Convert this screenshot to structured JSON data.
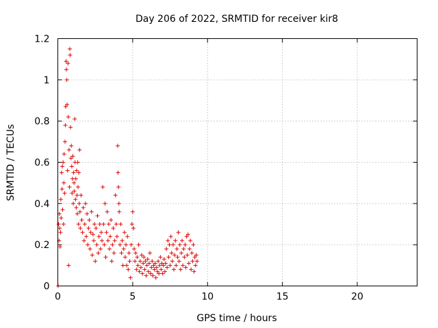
{
  "chart_data": {
    "type": "scatter",
    "title": "Day 206 of 2022, SRMTID for receiver kir8",
    "xlabel": "GPS time / hours",
    "ylabel": "SRMTID / TECUs",
    "xlim": [
      0,
      24
    ],
    "ylim": [
      0,
      1.2
    ],
    "xticks": [
      0,
      5,
      10,
      15,
      20
    ],
    "yticks": [
      0,
      0.2,
      0.4,
      0.6,
      0.8,
      1,
      1.2
    ],
    "xtick_labels": [
      "0",
      "5",
      "10",
      "15",
      "20"
    ],
    "ytick_labels": [
      "0",
      "0.2",
      "0.4",
      "0.6",
      "0.8",
      "1",
      "1.2"
    ],
    "grid": true,
    "marker": "+",
    "color": "#e00000",
    "series": [
      {
        "name": "SRMTID",
        "points": [
          [
            0.02,
            0.0
          ],
          [
            0.05,
            0.3
          ],
          [
            0.08,
            0.22
          ],
          [
            0.1,
            0.35
          ],
          [
            0.12,
            0.28
          ],
          [
            0.15,
            0.19
          ],
          [
            0.18,
            0.26
          ],
          [
            0.2,
            0.42
          ],
          [
            0.22,
            0.33
          ],
          [
            0.25,
            0.55
          ],
          [
            0.28,
            0.47
          ],
          [
            0.3,
            0.58
          ],
          [
            0.32,
            0.37
          ],
          [
            0.35,
            0.6
          ],
          [
            0.38,
            0.3
          ],
          [
            0.4,
            0.5
          ],
          [
            0.42,
            0.64
          ],
          [
            0.45,
            0.45
          ],
          [
            0.48,
            0.7
          ],
          [
            0.5,
            0.78
          ],
          [
            0.52,
            0.87
          ],
          [
            0.55,
            1.09
          ],
          [
            0.57,
            1.05
          ],
          [
            0.6,
            1.0
          ],
          [
            0.62,
            0.88
          ],
          [
            0.65,
            0.56
          ],
          [
            0.68,
            1.08
          ],
          [
            0.7,
            0.82
          ],
          [
            0.72,
            0.1
          ],
          [
            0.75,
            0.66
          ],
          [
            0.78,
            0.48
          ],
          [
            0.8,
            1.15
          ],
          [
            0.82,
            1.12
          ],
          [
            0.85,
            0.77
          ],
          [
            0.88,
            0.62
          ],
          [
            0.9,
            0.68
          ],
          [
            0.93,
            0.58
          ],
          [
            0.95,
            0.45
          ],
          [
            0.98,
            0.52
          ],
          [
            1.0,
            0.63
          ],
          [
            1.03,
            0.4
          ],
          [
            1.05,
            0.55
          ],
          [
            1.08,
            0.5
          ],
          [
            1.1,
            0.46
          ],
          [
            1.13,
            0.81
          ],
          [
            1.15,
            0.6
          ],
          [
            1.18,
            0.42
          ],
          [
            1.2,
            0.52
          ],
          [
            1.23,
            0.38
          ],
          [
            1.25,
            0.56
          ],
          [
            1.28,
            0.44
          ],
          [
            1.3,
            0.35
          ],
          [
            1.33,
            0.6
          ],
          [
            1.35,
            0.48
          ],
          [
            1.38,
            0.3
          ],
          [
            1.4,
            0.55
          ],
          [
            1.43,
            0.4
          ],
          [
            1.45,
            0.66
          ],
          [
            1.48,
            0.36
          ],
          [
            1.5,
            0.28
          ],
          [
            1.55,
            0.44
          ],
          [
            1.6,
            0.32
          ],
          [
            1.65,
            0.26
          ],
          [
            1.7,
            0.38
          ],
          [
            1.75,
            0.22
          ],
          [
            1.8,
            0.3
          ],
          [
            1.85,
            0.4
          ],
          [
            1.9,
            0.24
          ],
          [
            1.95,
            0.35
          ],
          [
            2.0,
            0.2
          ],
          [
            2.05,
            0.28
          ],
          [
            2.1,
            0.32
          ],
          [
            2.15,
            0.18
          ],
          [
            2.2,
            0.26
          ],
          [
            2.25,
            0.36
          ],
          [
            2.3,
            0.15
          ],
          [
            2.35,
            0.25
          ],
          [
            2.4,
            0.22
          ],
          [
            2.45,
            0.3
          ],
          [
            2.5,
            0.12
          ],
          [
            2.55,
            0.28
          ],
          [
            2.6,
            0.2
          ],
          [
            2.65,
            0.34
          ],
          [
            2.7,
            0.16
          ],
          [
            2.75,
            0.24
          ],
          [
            2.8,
            0.3
          ],
          [
            2.85,
            0.18
          ],
          [
            2.9,
            0.26
          ],
          [
            2.95,
            0.22
          ],
          [
            3.0,
            0.48
          ],
          [
            3.05,
            0.3
          ],
          [
            3.1,
            0.2
          ],
          [
            3.15,
            0.4
          ],
          [
            3.2,
            0.14
          ],
          [
            3.25,
            0.26
          ],
          [
            3.3,
            0.36
          ],
          [
            3.35,
            0.22
          ],
          [
            3.4,
            0.3
          ],
          [
            3.45,
            0.18
          ],
          [
            3.5,
            0.24
          ],
          [
            3.55,
            0.32
          ],
          [
            3.6,
            0.12
          ],
          [
            3.65,
            0.2
          ],
          [
            3.7,
            0.28
          ],
          [
            3.75,
            0.16
          ],
          [
            3.8,
            0.22
          ],
          [
            3.85,
            0.44
          ],
          [
            3.9,
            0.3
          ],
          [
            3.95,
            0.24
          ],
          [
            4.0,
            0.68
          ],
          [
            4.02,
            0.55
          ],
          [
            4.05,
            0.48
          ],
          [
            4.08,
            0.4
          ],
          [
            4.1,
            0.36
          ],
          [
            4.15,
            0.2
          ],
          [
            4.2,
            0.3
          ],
          [
            4.25,
            0.16
          ],
          [
            4.3,
            0.22
          ],
          [
            4.35,
            0.1
          ],
          [
            4.4,
            0.18
          ],
          [
            4.45,
            0.26
          ],
          [
            4.5,
            0.14
          ],
          [
            4.55,
            0.2
          ],
          [
            4.6,
            0.1
          ],
          [
            4.65,
            0.24
          ],
          [
            4.7,
            0.08
          ],
          [
            4.75,
            0.16
          ],
          [
            4.8,
            0.12
          ],
          [
            4.85,
            0.04
          ],
          [
            4.9,
            0.2
          ],
          [
            4.95,
            0.3
          ],
          [
            5.0,
            0.36
          ],
          [
            5.05,
            0.28
          ],
          [
            5.1,
            0.18
          ],
          [
            5.15,
            0.12
          ],
          [
            5.2,
            0.16
          ],
          [
            5.25,
            0.08
          ],
          [
            5.3,
            0.14
          ],
          [
            5.35,
            0.1
          ],
          [
            5.4,
            0.2
          ],
          [
            5.45,
            0.07
          ],
          [
            5.5,
            0.12
          ],
          [
            5.55,
            0.09
          ],
          [
            5.6,
            0.15
          ],
          [
            5.65,
            0.06
          ],
          [
            5.7,
            0.11
          ],
          [
            5.75,
            0.14
          ],
          [
            5.8,
            0.08
          ],
          [
            5.85,
            0.12
          ],
          [
            5.9,
            0.05
          ],
          [
            5.95,
            0.1
          ],
          [
            6.0,
            0.13
          ],
          [
            6.05,
            0.07
          ],
          [
            6.1,
            0.11
          ],
          [
            6.15,
            0.16
          ],
          [
            6.2,
            0.06
          ],
          [
            6.25,
            0.09
          ],
          [
            6.3,
            0.12
          ],
          [
            6.35,
            0.05
          ],
          [
            6.4,
            0.1
          ],
          [
            6.45,
            0.08
          ],
          [
            6.5,
            0.11
          ],
          [
            6.55,
            0.04
          ],
          [
            6.6,
            0.09
          ],
          [
            6.65,
            0.07
          ],
          [
            6.7,
            0.12
          ],
          [
            6.75,
            0.06
          ],
          [
            6.8,
            0.1
          ],
          [
            6.85,
            0.14
          ],
          [
            6.9,
            0.08
          ],
          [
            6.95,
            0.11
          ],
          [
            7.0,
            0.06
          ],
          [
            7.05,
            0.1
          ],
          [
            7.1,
            0.13
          ],
          [
            7.15,
            0.07
          ],
          [
            7.2,
            0.11
          ],
          [
            7.25,
            0.18
          ],
          [
            7.3,
            0.09
          ],
          [
            7.35,
            0.22
          ],
          [
            7.4,
            0.14
          ],
          [
            7.45,
            0.2
          ],
          [
            7.5,
            0.1
          ],
          [
            7.55,
            0.24
          ],
          [
            7.6,
            0.16
          ],
          [
            7.65,
            0.12
          ],
          [
            7.7,
            0.2
          ],
          [
            7.75,
            0.08
          ],
          [
            7.8,
            0.15
          ],
          [
            7.85,
            0.22
          ],
          [
            7.9,
            0.1
          ],
          [
            7.95,
            0.18
          ],
          [
            8.0,
            0.14
          ],
          [
            8.05,
            0.26
          ],
          [
            8.1,
            0.12
          ],
          [
            8.15,
            0.2
          ],
          [
            8.2,
            0.08
          ],
          [
            8.25,
            0.16
          ],
          [
            8.3,
            0.22
          ],
          [
            8.35,
            0.1
          ],
          [
            8.4,
            0.18
          ],
          [
            8.45,
            0.14
          ],
          [
            8.5,
            0.2
          ],
          [
            8.55,
            0.09
          ],
          [
            8.6,
            0.24
          ],
          [
            8.65,
            0.15
          ],
          [
            8.7,
            0.25
          ],
          [
            8.75,
            0.11
          ],
          [
            8.8,
            0.18
          ],
          [
            8.85,
            0.22
          ],
          [
            8.9,
            0.08
          ],
          [
            8.95,
            0.16
          ],
          [
            9.0,
            0.12
          ],
          [
            9.05,
            0.2
          ],
          [
            9.1,
            0.07
          ],
          [
            9.15,
            0.14
          ],
          [
            9.2,
            0.1
          ],
          [
            9.25,
            0.15
          ],
          [
            9.3,
            0.12
          ]
        ]
      }
    ]
  }
}
